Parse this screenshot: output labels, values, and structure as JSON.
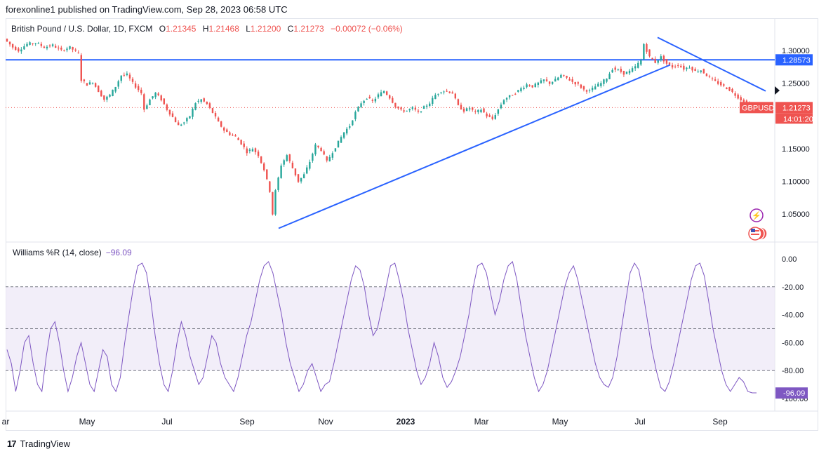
{
  "caption": "forexonline1 published on TradingView.com, Sep 28, 2023 06:58 UTC",
  "legend": {
    "symbol": "British Pound / U.S. Dollar, 1D, FXCM",
    "o_label": "O",
    "o": "1.21345",
    "h_label": "H",
    "h": "1.21468",
    "l_label": "L",
    "l": "1.21200",
    "c_label": "C",
    "c": "1.21273",
    "change": "−0.00072 (−0.06%)"
  },
  "wr_legend": {
    "name": "Williams %R (14, close)",
    "value": "−96.09"
  },
  "footer": {
    "brand": "TradingView"
  },
  "chart_data": [
    {
      "type": "candlestick",
      "symbol": "GBPUSD",
      "ylim": [
        1.02,
        1.325
      ],
      "y_ticks": [
        "1.30000",
        "1.25000",
        "1.15000",
        "1.10000",
        "1.05000"
      ],
      "x_ticks": [
        "ar",
        "May",
        "Jul",
        "Sep",
        "Nov",
        "2023",
        "Mar",
        "May",
        "Jul",
        "Sep"
      ],
      "x_tick_bold": [
        false,
        false,
        false,
        false,
        false,
        true,
        false,
        false,
        false,
        false
      ],
      "price_series": [
        [
          0,
          1.318
        ],
        [
          6,
          1.305
        ],
        [
          10,
          1.3
        ],
        [
          16,
          1.31
        ],
        [
          22,
          1.312
        ],
        [
          28,
          1.305
        ],
        [
          34,
          1.308
        ],
        [
          40,
          1.3
        ],
        [
          46,
          1.305
        ],
        [
          52,
          1.295
        ],
        [
          54,
          1.255
        ],
        [
          58,
          1.248
        ],
        [
          62,
          1.252
        ],
        [
          66,
          1.238
        ],
        [
          70,
          1.225
        ],
        [
          74,
          1.232
        ],
        [
          78,
          1.245
        ],
        [
          82,
          1.262
        ],
        [
          86,
          1.263
        ],
        [
          90,
          1.25
        ],
        [
          96,
          1.235
        ],
        [
          98,
          1.21
        ],
        [
          102,
          1.225
        ],
        [
          106,
          1.235
        ],
        [
          110,
          1.225
        ],
        [
          114,
          1.21
        ],
        [
          118,
          1.198
        ],
        [
          122,
          1.185
        ],
        [
          126,
          1.19
        ],
        [
          130,
          1.2
        ],
        [
          134,
          1.22
        ],
        [
          138,
          1.225
        ],
        [
          142,
          1.218
        ],
        [
          146,
          1.205
        ],
        [
          150,
          1.19
        ],
        [
          154,
          1.178
        ],
        [
          158,
          1.172
        ],
        [
          162,
          1.168
        ],
        [
          166,
          1.158
        ],
        [
          170,
          1.145
        ],
        [
          174,
          1.15
        ],
        [
          178,
          1.14
        ],
        [
          182,
          1.118
        ],
        [
          186,
          1.085
        ],
        [
          188,
          1.05
        ],
        [
          190,
          1.085
        ],
        [
          194,
          1.125
        ],
        [
          198,
          1.14
        ],
        [
          202,
          1.12
        ],
        [
          206,
          1.1
        ],
        [
          210,
          1.11
        ],
        [
          214,
          1.13
        ],
        [
          218,
          1.155
        ],
        [
          222,
          1.148
        ],
        [
          226,
          1.13
        ],
        [
          230,
          1.145
        ],
        [
          234,
          1.16
        ],
        [
          238,
          1.175
        ],
        [
          242,
          1.185
        ],
        [
          246,
          1.205
        ],
        [
          250,
          1.22
        ],
        [
          254,
          1.228
        ],
        [
          258,
          1.222
        ],
        [
          262,
          1.232
        ],
        [
          266,
          1.238
        ],
        [
          270,
          1.228
        ],
        [
          274,
          1.215
        ],
        [
          278,
          1.208
        ],
        [
          282,
          1.208
        ],
        [
          286,
          1.212
        ],
        [
          290,
          1.205
        ],
        [
          294,
          1.213
        ],
        [
          298,
          1.22
        ],
        [
          302,
          1.232
        ],
        [
          306,
          1.238
        ],
        [
          310,
          1.238
        ],
        [
          314,
          1.235
        ],
        [
          318,
          1.215
        ],
        [
          322,
          1.208
        ],
        [
          326,
          1.212
        ],
        [
          330,
          1.205
        ],
        [
          334,
          1.21
        ],
        [
          338,
          1.2
        ],
        [
          342,
          1.195
        ],
        [
          346,
          1.21
        ],
        [
          350,
          1.225
        ],
        [
          354,
          1.23
        ],
        [
          358,
          1.235
        ],
        [
          362,
          1.242
        ],
        [
          366,
          1.248
        ],
        [
          370,
          1.245
        ],
        [
          374,
          1.25
        ],
        [
          378,
          1.255
        ],
        [
          382,
          1.25
        ],
        [
          386,
          1.255
        ],
        [
          390,
          1.262
        ],
        [
          394,
          1.258
        ],
        [
          398,
          1.252
        ],
        [
          402,
          1.248
        ],
        [
          406,
          1.24
        ],
        [
          410,
          1.238
        ],
        [
          414,
          1.245
        ],
        [
          418,
          1.25
        ],
        [
          422,
          1.258
        ],
        [
          426,
          1.272
        ],
        [
          430,
          1.27
        ],
        [
          434,
          1.265
        ],
        [
          438,
          1.268
        ],
        [
          442,
          1.275
        ],
        [
          446,
          1.285
        ],
        [
          448,
          1.31
        ],
        [
          450,
          1.3
        ],
        [
          452,
          1.29
        ],
        [
          456,
          1.282
        ],
        [
          460,
          1.29
        ],
        [
          464,
          1.28
        ],
        [
          468,
          1.275
        ],
        [
          472,
          1.278
        ],
        [
          476,
          1.272
        ],
        [
          480,
          1.275
        ],
        [
          484,
          1.268
        ],
        [
          488,
          1.27
        ],
        [
          492,
          1.262
        ],
        [
          496,
          1.255
        ],
        [
          500,
          1.25
        ],
        [
          504,
          1.245
        ],
        [
          508,
          1.24
        ],
        [
          512,
          1.232
        ],
        [
          516,
          1.225
        ],
        [
          520,
          1.218
        ],
        [
          522,
          1.213
        ]
      ],
      "price_series_x_range": [
        0,
        522
      ],
      "horizontal_line": 1.28573,
      "support_trendline": [
        [
          1.028,
          0.0
        ],
        [
          1.278,
          0.0
        ]
      ],
      "resistance_trendline": [
        [
          1.32,
          0.0
        ],
        [
          1.238,
          0.0
        ]
      ],
      "price_labels": [
        {
          "text": "1.28573",
          "value": 1.28573,
          "color": "#2962ff"
        },
        {
          "text": "1.21273",
          "value": 1.21273,
          "color": "#ef5350"
        }
      ],
      "countdown": "14:01:20",
      "symbol_badge": "GBPUSD",
      "colors": {
        "up": "#26a69a",
        "down": "#ef5350",
        "line": "#2962ff",
        "dotted": "#ef5350"
      }
    },
    {
      "type": "line",
      "name": "Williams %R (14, close)",
      "ylim": [
        -100,
        0
      ],
      "y_ticks": [
        "0.00",
        "-20.00",
        "-40.00",
        "-60.00",
        "-80.00",
        "-100.00"
      ],
      "bands": [
        -20,
        -50,
        -80
      ],
      "last_value_label": "-96.09",
      "color": "#7e57c2",
      "values": [
        -65,
        -75,
        -95,
        -80,
        -60,
        -55,
        -75,
        -90,
        -95,
        -70,
        -50,
        -45,
        -60,
        -80,
        -95,
        -85,
        -70,
        -60,
        -75,
        -90,
        -95,
        -80,
        -65,
        -70,
        -90,
        -95,
        -85,
        -60,
        -40,
        -20,
        -5,
        -3,
        -10,
        -30,
        -55,
        -75,
        -90,
        -95,
        -80,
        -60,
        -45,
        -55,
        -70,
        -80,
        -90,
        -85,
        -70,
        -55,
        -60,
        -75,
        -85,
        -90,
        -95,
        -85,
        -70,
        -55,
        -45,
        -30,
        -15,
        -5,
        -2,
        -10,
        -25,
        -40,
        -60,
        -75,
        -85,
        -95,
        -90,
        -80,
        -75,
        -85,
        -95,
        -90,
        -88,
        -75,
        -60,
        -45,
        -30,
        -15,
        -5,
        -8,
        -20,
        -40,
        -55,
        -50,
        -35,
        -20,
        -5,
        -3,
        -15,
        -30,
        -50,
        -65,
        -80,
        -90,
        -85,
        -75,
        -60,
        -70,
        -85,
        -92,
        -88,
        -80,
        -70,
        -55,
        -40,
        -20,
        -5,
        -3,
        -10,
        -25,
        -40,
        -30,
        -15,
        -5,
        -2,
        -15,
        -35,
        -55,
        -70,
        -85,
        -95,
        -90,
        -80,
        -65,
        -50,
        -35,
        -20,
        -10,
        -5,
        -15,
        -30,
        -45,
        -60,
        -75,
        -85,
        -90,
        -92,
        -85,
        -70,
        -50,
        -30,
        -10,
        -3,
        -8,
        -25,
        -45,
        -65,
        -80,
        -92,
        -95,
        -88,
        -75,
        -60,
        -45,
        -30,
        -15,
        -5,
        -3,
        -12,
        -30,
        -50,
        -65,
        -80,
        -90,
        -95,
        -90,
        -85,
        -88,
        -95,
        -96,
        -96
      ]
    }
  ]
}
